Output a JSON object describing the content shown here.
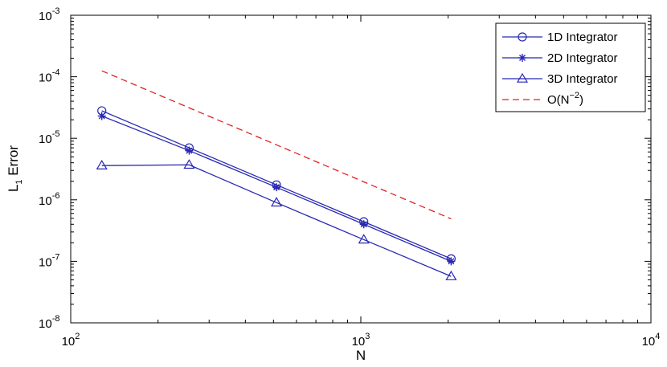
{
  "chart_data": {
    "type": "line",
    "title": "",
    "xlabel": "N",
    "ylabel": "L",
    "ylabel_subscript": "1",
    "ylabel_suffix": " Error",
    "xscale": "log",
    "yscale": "log",
    "xlim": [
      100,
      10000
    ],
    "ylim": [
      1e-08,
      0.001
    ],
    "x_ticks": [
      {
        "value": 100,
        "base": "10",
        "exp": "2"
      },
      {
        "value": 1000,
        "base": "10",
        "exp": "3"
      },
      {
        "value": 10000,
        "base": "10",
        "exp": "4"
      }
    ],
    "y_ticks": [
      {
        "value": 1e-08,
        "base": "10",
        "exp": "-8"
      },
      {
        "value": 1e-07,
        "base": "10",
        "exp": "-7"
      },
      {
        "value": 1e-06,
        "base": "10",
        "exp": "-6"
      },
      {
        "value": 1e-05,
        "base": "10",
        "exp": "-5"
      },
      {
        "value": 0.0001,
        "base": "10",
        "exp": "-4"
      },
      {
        "value": 0.001,
        "base": "10",
        "exp": "-3"
      }
    ],
    "grid": false,
    "legend_position": "top-right",
    "series": [
      {
        "name": "1D Integrator",
        "color": "#2828b4",
        "marker": "circle",
        "style": "solid",
        "x": [
          128,
          256,
          512,
          1024,
          2048
        ],
        "y": [
          2.8e-05,
          7e-06,
          1.75e-06,
          4.4e-07,
          1.1e-07
        ]
      },
      {
        "name": "2D Integrator",
        "color": "#2828b4",
        "marker": "star",
        "style": "solid",
        "x": [
          128,
          256,
          512,
          1024,
          2048
        ],
        "y": [
          2.3e-05,
          6.3e-06,
          1.6e-06,
          4e-07,
          1e-07
        ]
      },
      {
        "name": "3D Integrator",
        "color": "#2828b4",
        "marker": "triangle",
        "style": "solid",
        "x": [
          128,
          256,
          512,
          1024,
          2048
        ],
        "y": [
          3.6e-06,
          3.7e-06,
          9e-07,
          2.25e-07,
          5.7e-08
        ]
      },
      {
        "name": "O(N",
        "name_sup": "−2",
        "name_suffix": ")",
        "color": "#e0201e",
        "marker": "none",
        "style": "dashed",
        "x": [
          128,
          2048
        ],
        "y": [
          0.000125,
          4.9e-07
        ]
      }
    ]
  }
}
